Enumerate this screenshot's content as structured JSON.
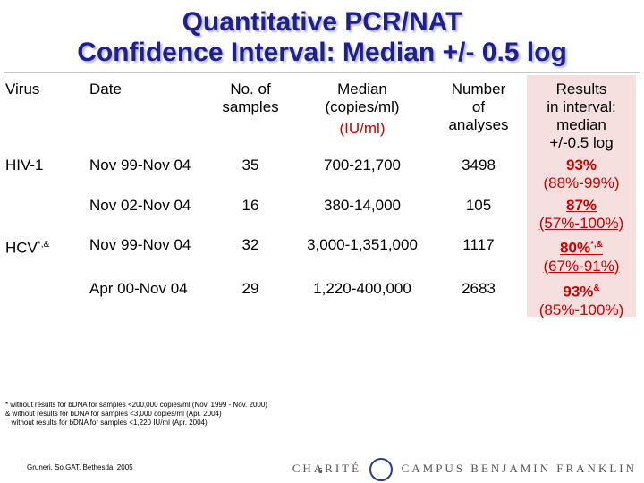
{
  "title": {
    "line1": "Quantitative PCR/NAT",
    "line2": "Confidence Interval: Median +/- 0.5 log"
  },
  "headers": {
    "virus": "Virus",
    "date": "Date",
    "samples": [
      "No. of",
      "samples"
    ],
    "median": [
      "Median",
      "(copies/ml)",
      "(IU/ml)"
    ],
    "analyses": [
      "Number",
      "of",
      "analyses"
    ],
    "results": [
      "Results",
      "in interval:",
      "median",
      "+/-0.5 log"
    ]
  },
  "rows": [
    {
      "virus": "HIV-1",
      "date": "Nov 99-Nov 04",
      "samples": "35",
      "median": "700-21,700",
      "analyses": "3498",
      "result_main": "93%",
      "result_sup": "",
      "result_range": "(88%-99%)"
    },
    {
      "virus": "",
      "date": "Nov 02-Nov 04",
      "samples": "16",
      "median": "380-14,000",
      "analyses": "105",
      "result_main": "87%",
      "result_sup": "",
      "result_range": "(57%-100%)"
    },
    {
      "virus": "HCV",
      "virus_sup": "*,&",
      "date": "Nov 99-Nov 04",
      "samples": "32",
      "median": "3,000-1,351,000",
      "analyses": "1117",
      "result_main": "80%",
      "result_sup": "*,&",
      "result_range": "(67%-91%)"
    },
    {
      "virus": "",
      "date": "Apr 00-Nov 04",
      "samples": "29",
      "median": "1,220-400,000",
      "analyses": "2683",
      "result_main": "93%",
      "result_sup": "&",
      "result_range": "(85%-100%)"
    }
  ],
  "footnotes": [
    "* without results for bDNA for samples <200,000 copies/ml (Nov. 1999 - Nov. 2000)",
    "& without results for bDNA for samples <3,000 copies/ml (Apr. 2004)",
    "   without results for bDNA for samples <1,220 IU/ml (Apr. 2004)"
  ],
  "footer": {
    "source": "Gruneri, So.GAT, Bethesda, 2005",
    "page": "6",
    "logo_left": "CHARITÉ",
    "logo_right": "CAMPUS BENJAMIN FRANKLIN"
  },
  "colors": {
    "title": "#1f1f8f",
    "result_text": "#cc0000",
    "results_shade": "#f5dfdf",
    "logo_ring": "#2b3a8a"
  }
}
